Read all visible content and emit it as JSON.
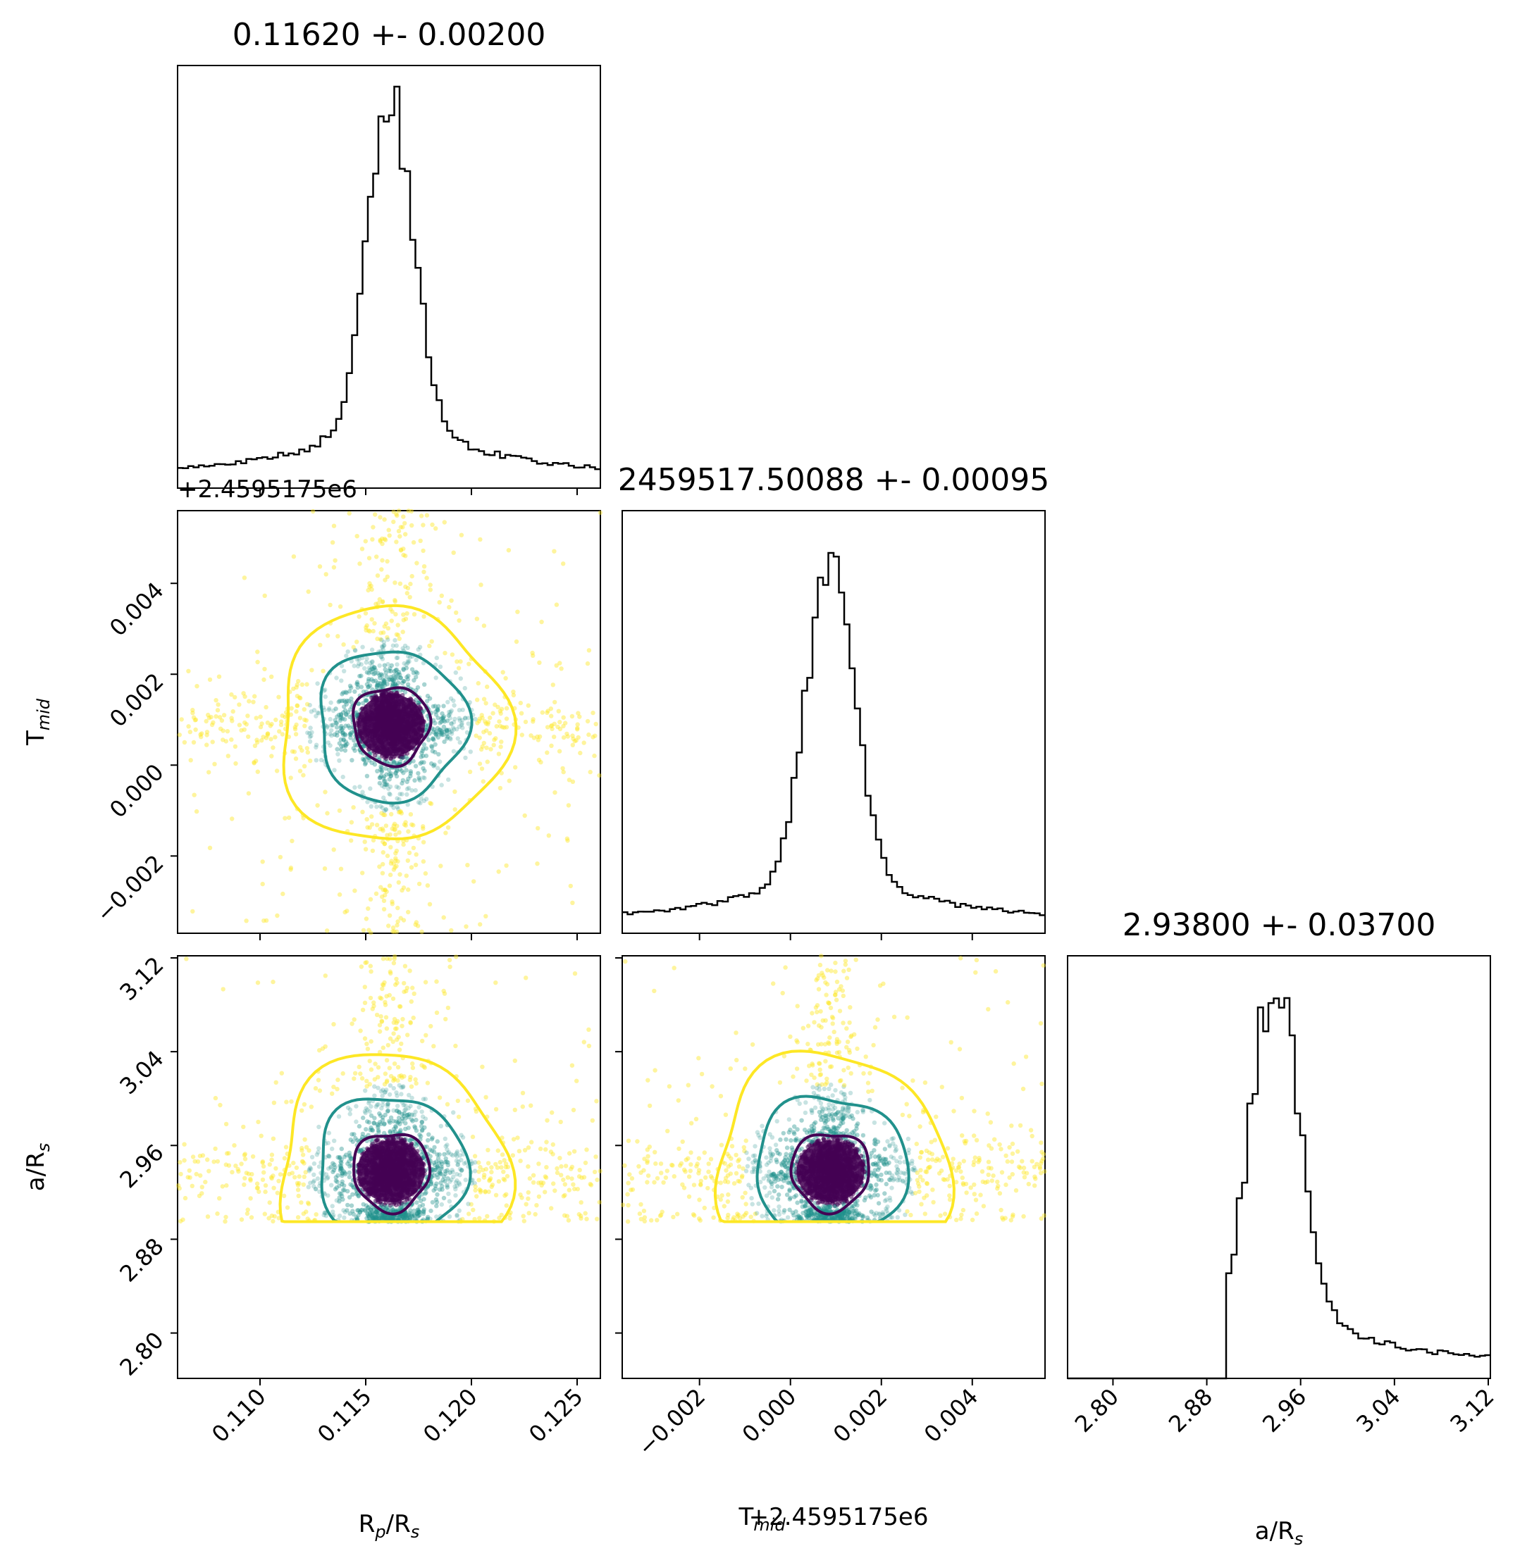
{
  "chart_data": {
    "type": "scatter",
    "figure_kind": "corner plot",
    "parameters": [
      {
        "label_main": "R",
        "label_sub1": "p",
        "label_mid": "/R",
        "label_sub2": "s",
        "range": [
          0.1061,
          0.1261
        ],
        "ticks": [
          "0.110",
          "0.115",
          "0.120",
          "0.125"
        ],
        "tick_values": [
          0.11,
          0.115,
          0.12,
          0.125
        ],
        "title": "0.11620 +- 0.00200"
      },
      {
        "label_main": "T",
        "label_sub1": "mid",
        "label_mid": "",
        "label_sub2": "",
        "range": [
          -0.0037,
          0.0056
        ],
        "ticks": [
          "−0.002",
          "0.000",
          "0.002",
          "0.004"
        ],
        "tick_values": [
          -0.002,
          0.0,
          0.002,
          0.004
        ],
        "offset_text": "+2.4595175e6",
        "title": "2459517.50088 +- 0.00095"
      },
      {
        "label_main": "a/R",
        "label_sub1": "s",
        "label_mid": "",
        "label_sub2": "",
        "range": [
          2.7613,
          3.1218
        ],
        "ticks": [
          "2.80",
          "2.88",
          "2.96",
          "3.04",
          "3.12"
        ],
        "tick_values": [
          2.8,
          2.88,
          2.96,
          3.04,
          3.12
        ],
        "title": "2.93800 +- 0.03700"
      }
    ],
    "x_axis_labels": [
      "R_p/R_s",
      "T_mid+2.4595175e6",
      "a/R_s"
    ],
    "y_axis_labels": [
      "T_mid",
      "a/R_s"
    ],
    "centers": [
      0.1162,
      0.00088,
      2.938
    ],
    "sigmas": [
      0.002,
      0.00095,
      0.037
    ],
    "histograms": {
      "rp_rs": {
        "peak": 0.1162,
        "peak_height_frac": 0.95
      },
      "tmid": {
        "peak": 0.00088,
        "peak_height_frac": 0.9
      },
      "a_rs": {
        "peak": 2.938,
        "peak_height_frac": 0.9,
        "lower_cut": 2.895
      }
    },
    "contour_levels": [
      "inner",
      "middle",
      "outer"
    ],
    "colors": {
      "inner": "#440154",
      "middle": "#21918c",
      "outer": "#fde725",
      "hist": "#000000"
    },
    "grid": false
  }
}
